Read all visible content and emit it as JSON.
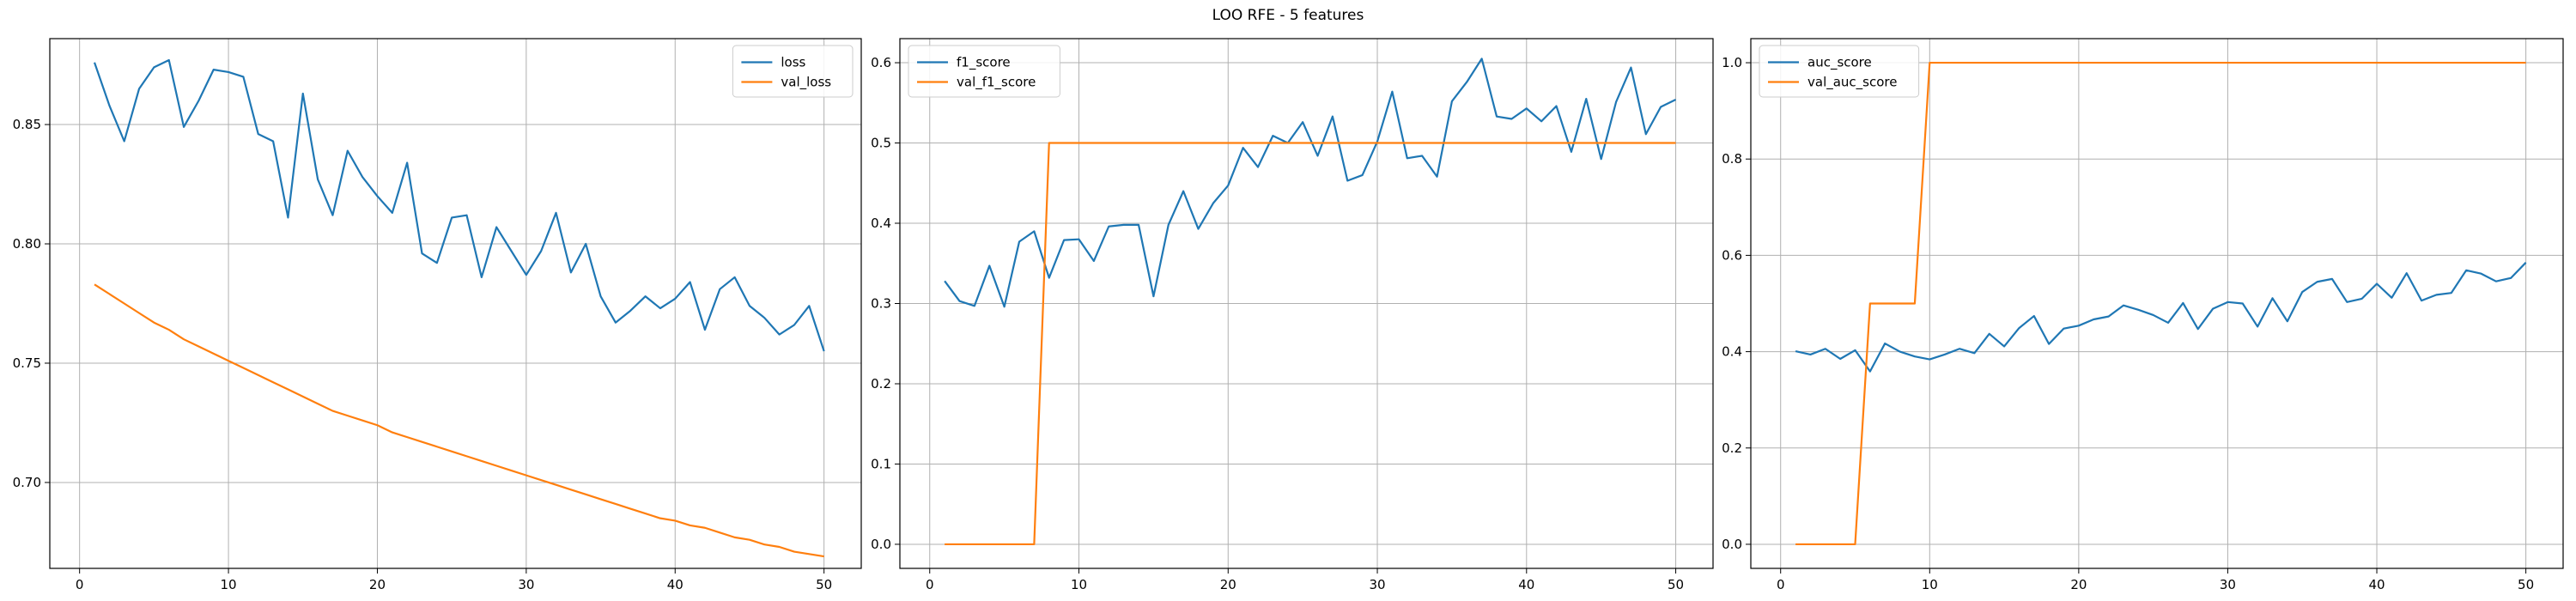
{
  "figure": {
    "title": "LOO RFE - 5 features"
  },
  "colors": {
    "series1": "#1f77b4",
    "series2": "#ff7f0e",
    "grid": "#b0b0b0",
    "axis": "#000000"
  },
  "chart_data": [
    {
      "type": "line",
      "title": "",
      "xlabel": "",
      "ylabel": "",
      "xlim": [
        -2,
        52.5
      ],
      "ylim": [
        0.664,
        0.886
      ],
      "xticks": [
        0,
        10,
        20,
        30,
        40,
        50
      ],
      "yticks": [
        0.7,
        0.75,
        0.8,
        0.85
      ],
      "ytick_format": 2,
      "grid": true,
      "legend_position": "top-right",
      "x": [
        1,
        2,
        3,
        4,
        5,
        6,
        7,
        8,
        9,
        10,
        11,
        12,
        13,
        14,
        15,
        16,
        17,
        18,
        19,
        20,
        21,
        22,
        23,
        24,
        25,
        26,
        27,
        28,
        29,
        30,
        31,
        32,
        33,
        34,
        35,
        36,
        37,
        38,
        39,
        40,
        41,
        42,
        43,
        44,
        45,
        46,
        47,
        48,
        49,
        50
      ],
      "series": [
        {
          "name": "loss",
          "color": "#1f77b4",
          "values": [
            0.876,
            0.858,
            0.843,
            0.865,
            0.874,
            0.877,
            0.849,
            0.86,
            0.873,
            0.872,
            0.87,
            0.846,
            0.843,
            0.811,
            0.863,
            0.827,
            0.812,
            0.839,
            0.828,
            0.82,
            0.813,
            0.834,
            0.796,
            0.792,
            0.811,
            0.812,
            0.786,
            0.807,
            0.797,
            0.787,
            0.797,
            0.813,
            0.788,
            0.8,
            0.778,
            0.767,
            0.772,
            0.778,
            0.773,
            0.777,
            0.784,
            0.764,
            0.781,
            0.786,
            0.774,
            0.769,
            0.762,
            0.766,
            0.774,
            0.755
          ]
        },
        {
          "name": "val_loss",
          "color": "#ff7f0e",
          "values": [
            0.783,
            0.779,
            0.775,
            0.771,
            0.767,
            0.764,
            0.76,
            0.757,
            0.754,
            0.751,
            0.748,
            0.745,
            0.742,
            0.739,
            0.736,
            0.733,
            0.73,
            0.728,
            0.726,
            0.724,
            0.721,
            0.719,
            0.717,
            0.715,
            0.713,
            0.711,
            0.709,
            0.707,
            0.705,
            0.703,
            0.701,
            0.699,
            0.697,
            0.695,
            0.693,
            0.691,
            0.689,
            0.687,
            0.685,
            0.684,
            0.682,
            0.681,
            0.679,
            0.677,
            0.676,
            0.674,
            0.673,
            0.671,
            0.67,
            0.669
          ]
        }
      ]
    },
    {
      "type": "line",
      "title": "",
      "xlabel": "",
      "ylabel": "",
      "xlim": [
        -2,
        52.5
      ],
      "ylim": [
        -0.03,
        0.63
      ],
      "xticks": [
        0,
        10,
        20,
        30,
        40,
        50
      ],
      "yticks": [
        0.0,
        0.1,
        0.2,
        0.3,
        0.4,
        0.5,
        0.6
      ],
      "ytick_format": 1,
      "grid": true,
      "legend_position": "top-left",
      "x": [
        1,
        2,
        3,
        4,
        5,
        6,
        7,
        8,
        9,
        10,
        11,
        12,
        13,
        14,
        15,
        16,
        17,
        18,
        19,
        20,
        21,
        22,
        23,
        24,
        25,
        26,
        27,
        28,
        29,
        30,
        31,
        32,
        33,
        34,
        35,
        36,
        37,
        38,
        39,
        40,
        41,
        42,
        43,
        44,
        45,
        46,
        47,
        48,
        49,
        50
      ],
      "series": [
        {
          "name": "f1_score",
          "color": "#1f77b4",
          "values": [
            0.328,
            0.303,
            0.297,
            0.347,
            0.296,
            0.377,
            0.39,
            0.332,
            0.379,
            0.38,
            0.353,
            0.396,
            0.398,
            0.398,
            0.309,
            0.398,
            0.44,
            0.393,
            0.425,
            0.447,
            0.494,
            0.47,
            0.509,
            0.5,
            0.526,
            0.484,
            0.533,
            0.453,
            0.46,
            0.502,
            0.564,
            0.481,
            0.484,
            0.458,
            0.552,
            0.576,
            0.605,
            0.533,
            0.53,
            0.543,
            0.527,
            0.546,
            0.489,
            0.555,
            0.48,
            0.551,
            0.594,
            0.511,
            0.545,
            0.554
          ]
        },
        {
          "name": "val_f1_score",
          "color": "#ff7f0e",
          "values": [
            0,
            0,
            0,
            0,
            0,
            0,
            0,
            0.5,
            0.5,
            0.5,
            0.5,
            0.5,
            0.5,
            0.5,
            0.5,
            0.5,
            0.5,
            0.5,
            0.5,
            0.5,
            0.5,
            0.5,
            0.5,
            0.5,
            0.5,
            0.5,
            0.5,
            0.5,
            0.5,
            0.5,
            0.5,
            0.5,
            0.5,
            0.5,
            0.5,
            0.5,
            0.5,
            0.5,
            0.5,
            0.5,
            0.5,
            0.5,
            0.5,
            0.5,
            0.5,
            0.5,
            0.5,
            0.5,
            0.5,
            0.5
          ]
        }
      ]
    },
    {
      "type": "line",
      "title": "",
      "xlabel": "",
      "ylabel": "",
      "xlim": [
        -2,
        52.5
      ],
      "ylim": [
        -0.05,
        1.05
      ],
      "xticks": [
        0,
        10,
        20,
        30,
        40,
        50
      ],
      "yticks": [
        0.0,
        0.2,
        0.4,
        0.6,
        0.8,
        1.0
      ],
      "ytick_format": 1,
      "grid": true,
      "legend_position": "top-left",
      "x": [
        1,
        2,
        3,
        4,
        5,
        6,
        7,
        8,
        9,
        10,
        11,
        12,
        13,
        14,
        15,
        16,
        17,
        18,
        19,
        20,
        21,
        22,
        23,
        24,
        25,
        26,
        27,
        28,
        29,
        30,
        31,
        32,
        33,
        34,
        35,
        36,
        37,
        38,
        39,
        40,
        41,
        42,
        43,
        44,
        45,
        46,
        47,
        48,
        49,
        50
      ],
      "series": [
        {
          "name": "auc_score",
          "color": "#1f77b4",
          "values": [
            0.401,
            0.394,
            0.406,
            0.385,
            0.403,
            0.359,
            0.417,
            0.4,
            0.39,
            0.384,
            0.394,
            0.406,
            0.397,
            0.437,
            0.411,
            0.449,
            0.474,
            0.416,
            0.448,
            0.454,
            0.467,
            0.473,
            0.496,
            0.487,
            0.476,
            0.46,
            0.501,
            0.447,
            0.489,
            0.503,
            0.5,
            0.452,
            0.511,
            0.463,
            0.524,
            0.545,
            0.551,
            0.503,
            0.51,
            0.541,
            0.512,
            0.563,
            0.506,
            0.518,
            0.522,
            0.569,
            0.562,
            0.546,
            0.553,
            0.585
          ]
        },
        {
          "name": "val_auc_score",
          "color": "#ff7f0e",
          "values": [
            0,
            0,
            0,
            0,
            0,
            0.5,
            0.5,
            0.5,
            0.5,
            1,
            1,
            1,
            1,
            1,
            1,
            1,
            1,
            1,
            1,
            1,
            1,
            1,
            1,
            1,
            1,
            1,
            1,
            1,
            1,
            1,
            1,
            1,
            1,
            1,
            1,
            1,
            1,
            1,
            1,
            1,
            1,
            1,
            1,
            1,
            1,
            1,
            1,
            1,
            1,
            1
          ]
        }
      ]
    }
  ]
}
